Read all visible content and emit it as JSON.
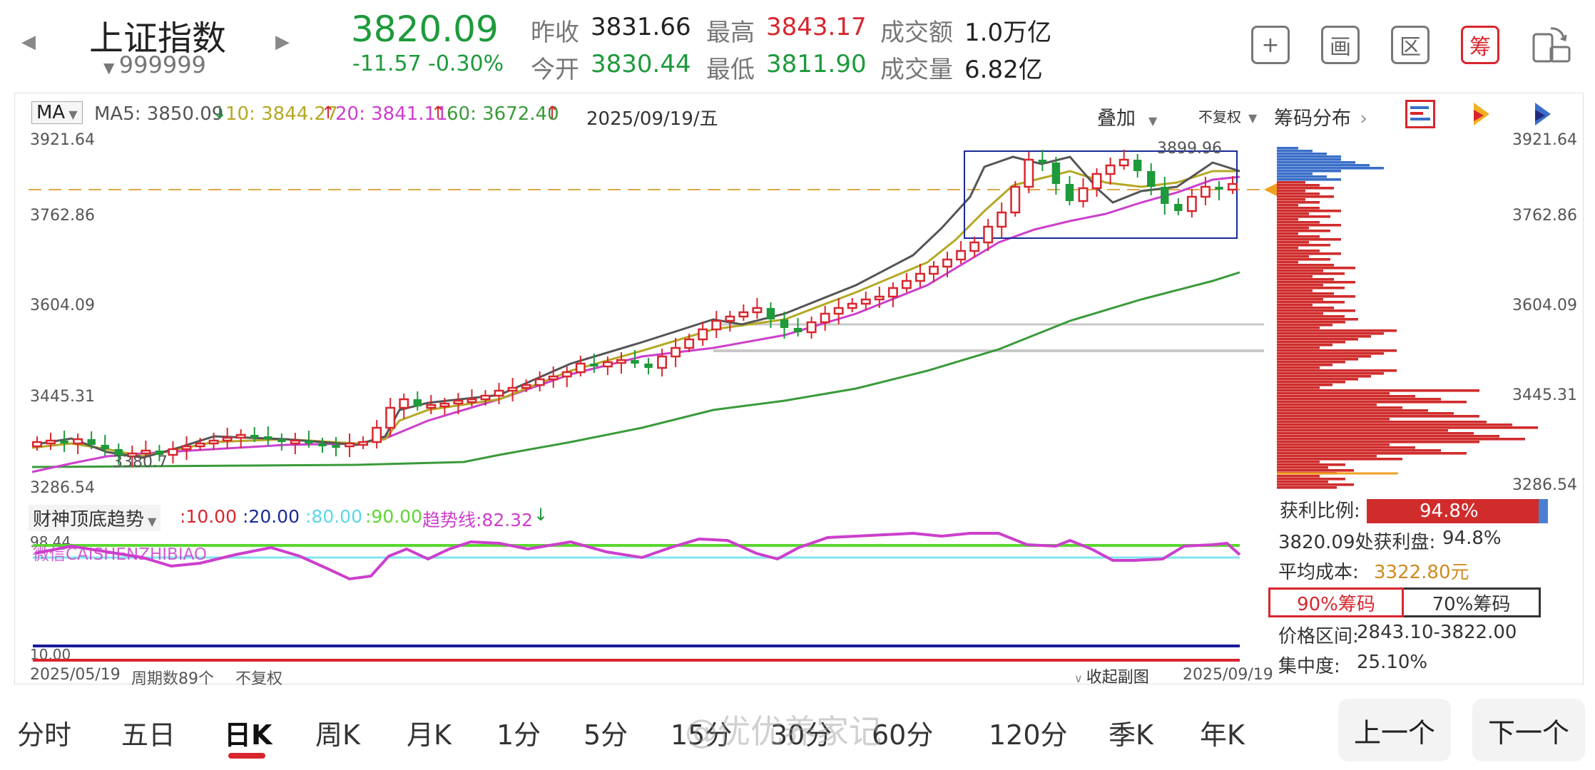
{
  "header": {
    "index_name": "上证指数",
    "code": "999999",
    "price": "3820.09",
    "change": "-11.57",
    "change_pct": "-0.30%",
    "prev_close_label": "昨收",
    "prev_close": "3831.66",
    "open_label": "今开",
    "open": "3830.44",
    "high_label": "最高",
    "high": "3843.17",
    "low_label": "最低",
    "low": "3811.90",
    "amount_label": "成交额",
    "amount": "1.0万亿",
    "volume_label": "成交量",
    "volume": "6.82亿"
  },
  "toolbar": {
    "add_label": "+",
    "draw_label": "画",
    "range_label": "区",
    "chip_label": "筹",
    "rotate_icon": "rotate-screen-icon"
  },
  "ma_bar": {
    "selector": "MA",
    "ma5": "MA5: 3850.09",
    "ma10": "10: 3844.27",
    "ma20": "20: 3841.11",
    "ma60": "60: 3672.40",
    "date": "2025/09/19/五",
    "overlay": "叠加",
    "adjust": "不复权",
    "chip_dist": "筹码分布"
  },
  "price_axis": [
    "3921.64",
    "3762.86",
    "3604.09",
    "3445.31",
    "3286.54"
  ],
  "annotations": {
    "high_marker": "3899.96",
    "low_marker": "3380.7"
  },
  "indicator": {
    "name": "财神顶底趋势",
    "l1": ":10.00",
    "l2": ":20.00",
    "l3": ":80.00",
    "l4": ":90.00",
    "trend": "趋势线:82.32",
    "watermark": "微信CAISHENZHIBIAO",
    "top_axis": "98.44",
    "bottom_axis": "10.00"
  },
  "footer_axis": {
    "start_date": "2025/05/19",
    "periods": "周期数89个",
    "adjust": "不复权",
    "collapse": "收起副图",
    "end_date": "2025/09/19"
  },
  "chip_stats": {
    "profit_ratio_label": "获利比例:",
    "profit_ratio": "94.8%",
    "profit_ratio_value": 0.948,
    "profit_at_label": "3820.09处获利盘:",
    "profit_at": "94.8%",
    "avg_cost_label": "平均成本:",
    "avg_cost": "3322.80元",
    "tab90": "90%筹码",
    "tab70": "70%筹码",
    "range_label": "价格区间:",
    "range": "2843.10-3822.00",
    "concentration_label": "集中度:",
    "concentration": "25.10%"
  },
  "tabs": [
    "分时",
    "五日",
    "日K",
    "周K",
    "月K",
    "1分",
    "5分",
    "15分",
    "30分",
    "60分",
    "120分",
    "季K",
    "年K"
  ],
  "active_tab": "日K",
  "prev_button": "上一个",
  "next_button": "下一个",
  "watermark_text": "@优优养家记",
  "colors": {
    "up": "#d8262e",
    "down": "#1d9a3a",
    "ma5": "#555555",
    "ma10": "#b5a824",
    "ma20": "#cc3fcc",
    "ma60": "#3a9a3a"
  }
}
